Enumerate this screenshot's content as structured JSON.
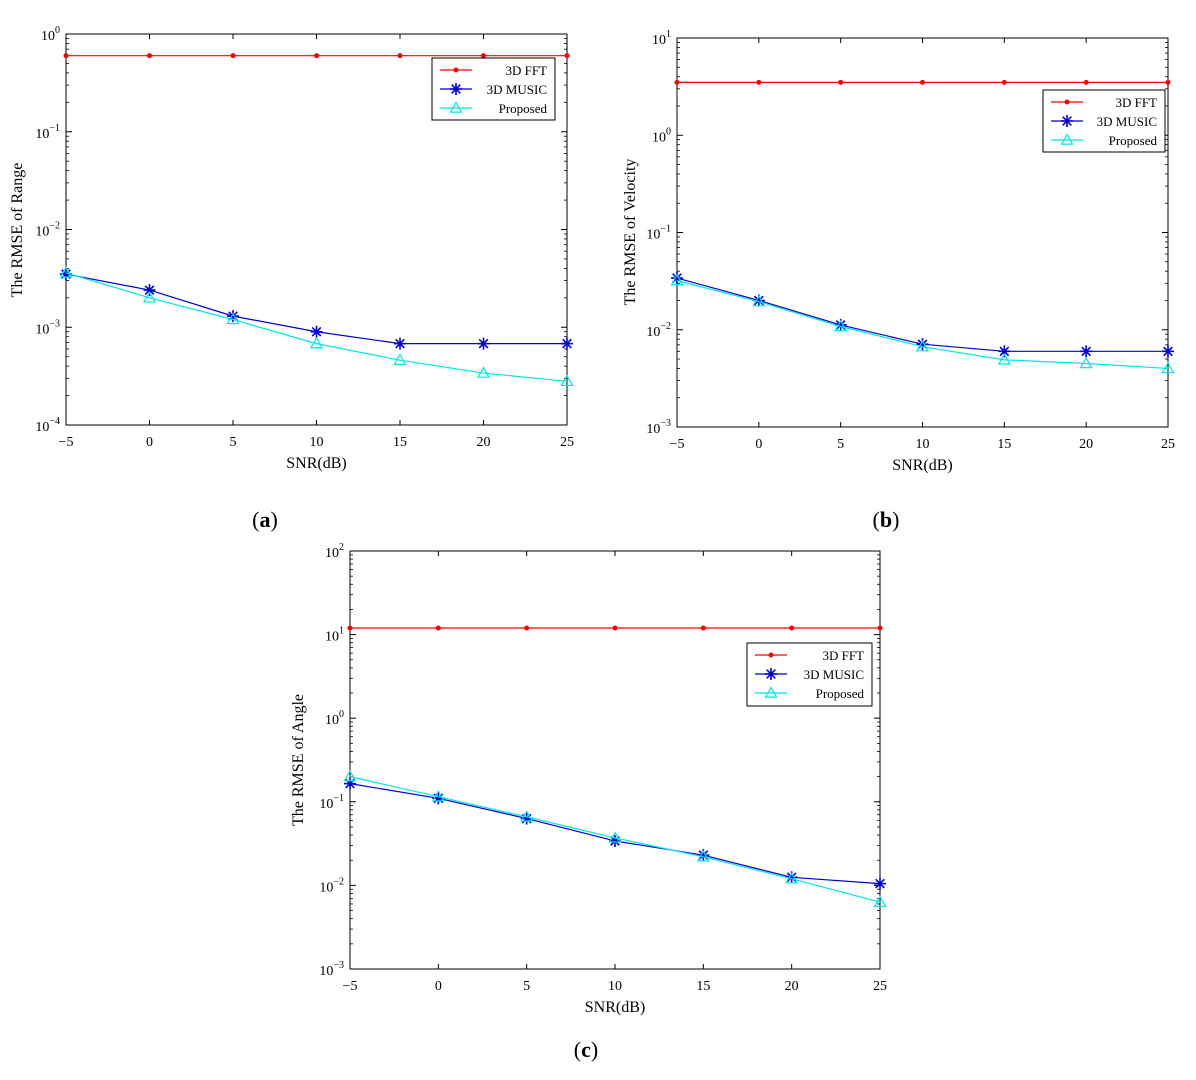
{
  "colors": {
    "fft": "#ff0000",
    "music": "#0000cc",
    "proposed": "#00e5e5",
    "axis": "#000000"
  },
  "chart_data": [
    {
      "type": "line",
      "yscale": "log",
      "panel_label": "a",
      "xlabel": "SNR(dB)",
      "ylabel": "The RMSE of Range",
      "x": [
        -5,
        0,
        5,
        10,
        15,
        20,
        25
      ],
      "xlim": [
        -5,
        25
      ],
      "ylim_exp": [
        -4,
        0
      ],
      "x_ticks": [
        "−5",
        "0",
        "5",
        "10",
        "15",
        "20",
        "25"
      ],
      "y_ticks": [
        {
          "base": "10",
          "exp": "−4"
        },
        {
          "base": "10",
          "exp": "−3"
        },
        {
          "base": "10",
          "exp": "−2"
        },
        {
          "base": "10",
          "exp": "−1"
        },
        {
          "base": "10",
          "exp": "0"
        }
      ],
      "legend_position": "top-right",
      "series": [
        {
          "name": "3D FFT",
          "color": "#ff0000",
          "marker": "dot",
          "values": [
            0.6,
            0.6,
            0.6,
            0.6,
            0.6,
            0.6,
            0.6
          ]
        },
        {
          "name": "3D MUSIC",
          "color": "#0000cc",
          "marker": "asterisk",
          "values": [
            0.0035,
            0.0024,
            0.0013,
            0.0009,
            0.00068,
            0.00068,
            0.00068
          ]
        },
        {
          "name": "Proposed",
          "color": "#00e5e5",
          "marker": "triangle",
          "values": [
            0.0036,
            0.002,
            0.0012,
            0.00068,
            0.00046,
            0.00034,
            0.00028
          ]
        }
      ]
    },
    {
      "type": "line",
      "yscale": "log",
      "panel_label": "b",
      "xlabel": "SNR(dB)",
      "ylabel": "The RMSE of Velocity",
      "x": [
        -5,
        0,
        5,
        10,
        15,
        20,
        25
      ],
      "xlim": [
        -5,
        25
      ],
      "ylim_exp": [
        -3,
        1
      ],
      "x_ticks": [
        "−5",
        "0",
        "5",
        "10",
        "15",
        "20",
        "25"
      ],
      "y_ticks": [
        {
          "base": "10",
          "exp": "−3"
        },
        {
          "base": "10",
          "exp": "−2"
        },
        {
          "base": "10",
          "exp": "−1"
        },
        {
          "base": "10",
          "exp": "0"
        },
        {
          "base": "10",
          "exp": "1"
        }
      ],
      "legend_position": "top-right",
      "series": [
        {
          "name": "3D FFT",
          "color": "#ff0000",
          "marker": "dot",
          "values": [
            3.5,
            3.5,
            3.5,
            3.5,
            3.5,
            3.5,
            3.5
          ]
        },
        {
          "name": "3D MUSIC",
          "color": "#0000cc",
          "marker": "asterisk",
          "values": [
            0.034,
            0.02,
            0.0112,
            0.0071,
            0.006,
            0.006,
            0.006
          ]
        },
        {
          "name": "Proposed",
          "color": "#00e5e5",
          "marker": "triangle",
          "values": [
            0.032,
            0.0195,
            0.0108,
            0.0067,
            0.0049,
            0.0045,
            0.004
          ]
        }
      ]
    },
    {
      "type": "line",
      "yscale": "log",
      "panel_label": "c",
      "xlabel": "SNR(dB)",
      "ylabel": "The RMSE of Angle",
      "x": [
        -5,
        0,
        5,
        10,
        15,
        20,
        25
      ],
      "xlim": [
        -5,
        25
      ],
      "ylim_exp": [
        -3,
        2
      ],
      "x_ticks": [
        "−5",
        "0",
        "5",
        "10",
        "15",
        "20",
        "25"
      ],
      "y_ticks": [
        {
          "base": "10",
          "exp": "−3"
        },
        {
          "base": "10",
          "exp": "−2"
        },
        {
          "base": "10",
          "exp": "−1"
        },
        {
          "base": "10",
          "exp": "0"
        },
        {
          "base": "10",
          "exp": "1"
        },
        {
          "base": "10",
          "exp": "2"
        }
      ],
      "legend_position": "right",
      "series": [
        {
          "name": "3D FFT",
          "color": "#ff0000",
          "marker": "dot",
          "values": [
            12,
            12,
            12,
            12,
            12,
            12,
            12
          ]
        },
        {
          "name": "3D MUSIC",
          "color": "#0000cc",
          "marker": "asterisk",
          "values": [
            0.165,
            0.11,
            0.063,
            0.034,
            0.023,
            0.0125,
            0.0105
          ]
        },
        {
          "name": "Proposed",
          "color": "#00e5e5",
          "marker": "triangle",
          "values": [
            0.2,
            0.115,
            0.066,
            0.037,
            0.022,
            0.012,
            0.0063
          ]
        }
      ]
    }
  ]
}
